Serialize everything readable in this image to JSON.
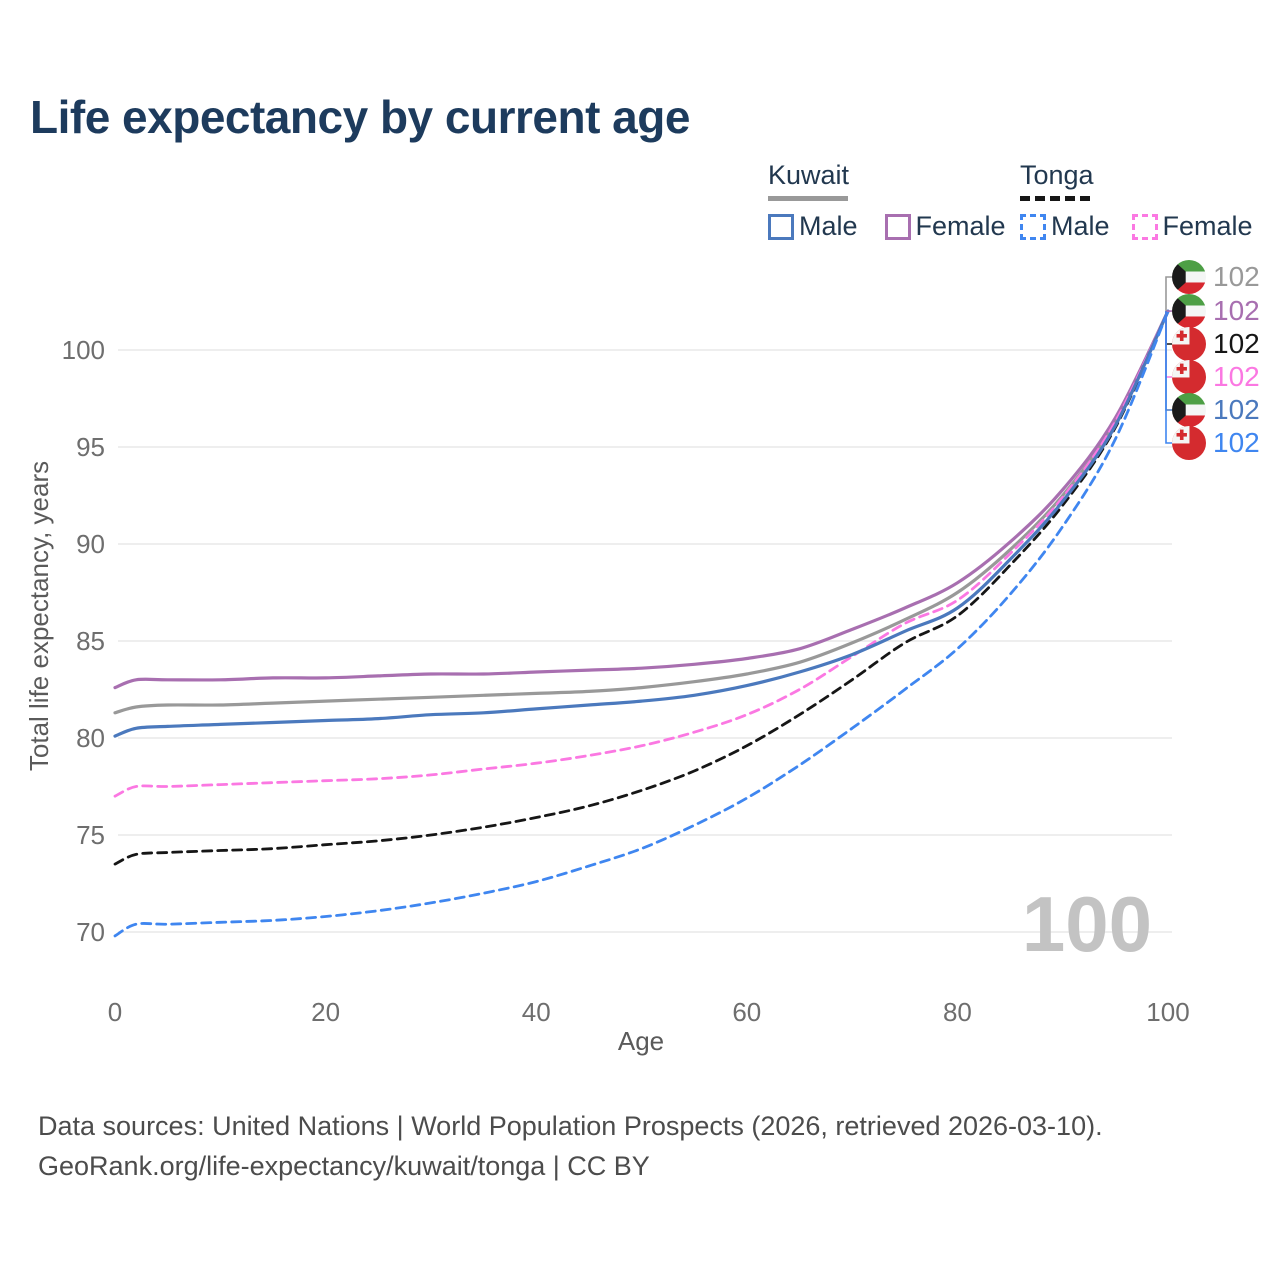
{
  "title": "Life expectancy by current age",
  "legend": {
    "groups": [
      {
        "country": "Kuwait",
        "entries": [
          {
            "label": "Male"
          },
          {
            "label": "Female"
          }
        ]
      },
      {
        "country": "Tonga",
        "entries": [
          {
            "label": "Male"
          },
          {
            "label": "Female"
          }
        ]
      }
    ]
  },
  "chart_data": {
    "type": "line",
    "title": "Life expectancy by current age",
    "xlabel": "Age",
    "ylabel": "Total life expectancy, years",
    "xlim": [
      0,
      100
    ],
    "ylim": [
      68.5,
      103
    ],
    "xticks": [
      0,
      20,
      40,
      60,
      80,
      100
    ],
    "yticks": [
      70,
      75,
      80,
      85,
      90,
      95,
      100
    ],
    "grid": "horizontal",
    "legend_position": "top-right",
    "watermark": "100",
    "x": [
      0,
      2,
      5,
      10,
      15,
      20,
      25,
      30,
      35,
      40,
      45,
      50,
      55,
      60,
      65,
      70,
      75,
      80,
      85,
      90,
      95,
      100
    ],
    "series": [
      {
        "name": "Kuwait",
        "country": "Kuwait",
        "sex": "both",
        "style": "solid",
        "color": "#999999",
        "flag": "kuwait",
        "end_value": "102",
        "label_row": 0,
        "values": [
          81.3,
          81.6,
          81.7,
          81.7,
          81.8,
          81.9,
          82.0,
          82.1,
          82.2,
          82.3,
          82.4,
          82.6,
          82.9,
          83.3,
          83.9,
          84.9,
          86.1,
          87.5,
          89.7,
          92.5,
          96.3,
          102
        ]
      },
      {
        "name": "Kuwait Female",
        "country": "Kuwait",
        "sex": "female",
        "style": "solid",
        "color": "#a86fb0",
        "flag": "kuwait",
        "end_value": "102",
        "label_row": 1,
        "values": [
          82.6,
          83.0,
          83.0,
          83.0,
          83.1,
          83.1,
          83.2,
          83.3,
          83.3,
          83.4,
          83.5,
          83.6,
          83.8,
          84.1,
          84.6,
          85.6,
          86.7,
          88.0,
          90.1,
          92.8,
          96.5,
          102
        ]
      },
      {
        "name": "Tonga",
        "country": "Tonga",
        "sex": "both",
        "style": "dashed",
        "color": "#161616",
        "flag": "tonga",
        "end_value": "102",
        "label_row": 2,
        "values": [
          73.5,
          74.0,
          74.1,
          74.2,
          74.3,
          74.5,
          74.7,
          75.0,
          75.4,
          75.9,
          76.5,
          77.3,
          78.3,
          79.6,
          81.2,
          83.0,
          84.9,
          86.3,
          88.9,
          92.0,
          96.0,
          102
        ]
      },
      {
        "name": "Tonga Female",
        "country": "Tonga",
        "sex": "female",
        "style": "dashed",
        "color": "#fb78e2",
        "flag": "tonga",
        "end_value": "102",
        "label_row": 3,
        "values": [
          77.0,
          77.5,
          77.5,
          77.6,
          77.7,
          77.8,
          77.9,
          78.1,
          78.4,
          78.7,
          79.1,
          79.6,
          80.3,
          81.2,
          82.5,
          84.2,
          85.9,
          87.1,
          89.5,
          92.4,
          96.3,
          102
        ]
      },
      {
        "name": "Kuwait Male",
        "country": "Kuwait",
        "sex": "male",
        "style": "solid",
        "color": "#4b79bd",
        "flag": "kuwait",
        "end_value": "102",
        "label_row": 4,
        "values": [
          80.1,
          80.5,
          80.6,
          80.7,
          80.8,
          80.9,
          81.0,
          81.2,
          81.3,
          81.5,
          81.7,
          81.9,
          82.2,
          82.7,
          83.4,
          84.3,
          85.5,
          86.7,
          89.2,
          92.2,
          96.1,
          102
        ]
      },
      {
        "name": "Tonga Male",
        "country": "Tonga",
        "sex": "male",
        "style": "dashed",
        "color": "#3f86f0",
        "flag": "tonga",
        "end_value": "102",
        "label_row": 5,
        "values": [
          69.8,
          70.4,
          70.4,
          70.5,
          70.6,
          70.8,
          71.1,
          71.5,
          72.0,
          72.6,
          73.4,
          74.3,
          75.5,
          76.9,
          78.6,
          80.5,
          82.5,
          84.6,
          87.4,
          90.9,
          95.4,
          102
        ]
      }
    ]
  },
  "footer": {
    "line1": "Data sources: United Nations | World Population Prospects (2026, retrieved 2026-03-10).",
    "line2": "GeoRank.org/life-expectancy/kuwait/tonga | CC BY"
  }
}
